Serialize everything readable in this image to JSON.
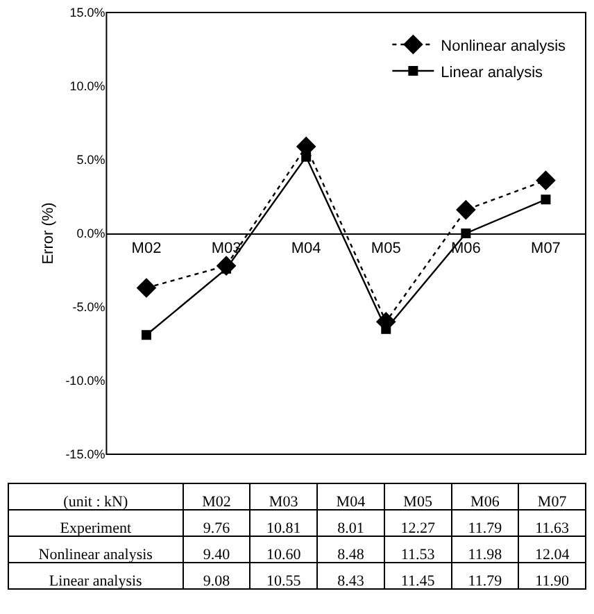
{
  "chart_data": [
    {
      "type": "line",
      "ylabel": "Error (%)",
      "categories": [
        "M02",
        "M03",
        "M04",
        "M05",
        "M06",
        "M07"
      ],
      "series": [
        {
          "name": "Nonlinear analysis",
          "color": "#000000",
          "marker": "diamond",
          "line_style": "dotted",
          "values": [
            -3.7,
            -2.2,
            5.9,
            -6.0,
            1.6,
            3.6
          ]
        },
        {
          "name": "Linear analysis",
          "color": "#000000",
          "marker": "square",
          "line_style": "solid",
          "values": [
            -6.9,
            -2.4,
            5.2,
            -6.5,
            0.0,
            2.3
          ]
        }
      ],
      "ylim": [
        -15,
        15
      ],
      "yticks": [
        {
          "value": -15,
          "label": "-15.0%"
        },
        {
          "value": -10,
          "label": "-10.0%"
        },
        {
          "value": -5,
          "label": "-5.0%"
        },
        {
          "value": 0,
          "label": "0.0%"
        },
        {
          "value": 5,
          "label": "5.0%"
        },
        {
          "value": 10,
          "label": "10.0%"
        },
        {
          "value": 15,
          "label": "15.0%"
        }
      ],
      "legend": "top right"
    },
    {
      "type": "other",
      "title": "(unit : kN)",
      "categories": [
        "M02",
        "M03",
        "M04",
        "M05",
        "M06",
        "M07"
      ],
      "series": [
        {
          "name": "Experiment",
          "values": [
            9.76,
            10.81,
            8.01,
            12.27,
            11.79,
            11.63
          ],
          "value_labels": [
            "9.76",
            "10.81",
            "8.01",
            "12.27",
            "11.79",
            "11.63"
          ]
        },
        {
          "name": "Nonlinear analysis",
          "values": [
            9.4,
            10.6,
            8.48,
            11.53,
            11.98,
            12.04
          ],
          "value_labels": [
            "9.40",
            "10.60",
            "8.48",
            "11.53",
            "11.98",
            "12.04"
          ]
        },
        {
          "name": "Linear analysis",
          "values": [
            9.08,
            10.55,
            8.43,
            11.45,
            11.79,
            11.9
          ],
          "value_labels": [
            "9.08",
            "10.55",
            "8.43",
            "11.45",
            "11.79",
            "11.90"
          ]
        }
      ]
    }
  ]
}
